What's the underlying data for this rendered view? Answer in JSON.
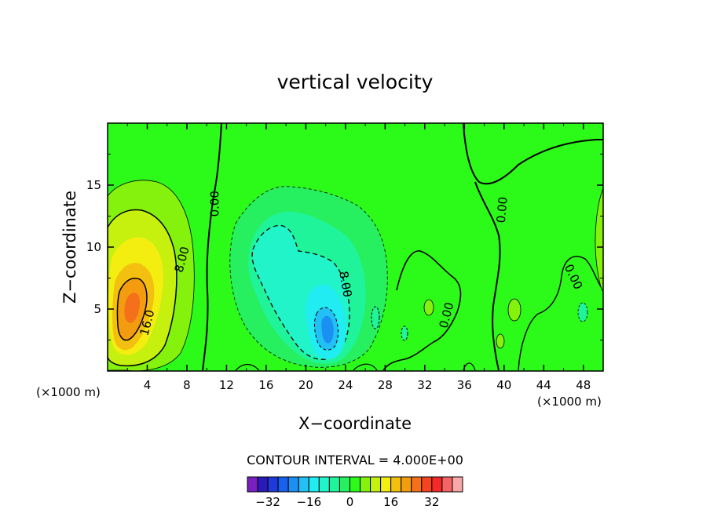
{
  "chart_data": {
    "type": "contour",
    "title": "vertical velocity",
    "xlabel": "X−coordinate",
    "ylabel": "Z−coordinate",
    "x_unit": "(×1000 m)",
    "y_unit": "(×1000 m)",
    "xlim": [
      0,
      50
    ],
    "ylim": [
      0,
      20
    ],
    "xticks": [
      4,
      8,
      12,
      16,
      20,
      24,
      28,
      32,
      36,
      40,
      44,
      48
    ],
    "xtick_labels": [
      "4",
      "8",
      "12",
      "16",
      "20",
      "24",
      "28",
      "32",
      "36",
      "40",
      "44",
      "48"
    ],
    "yticks": [
      5,
      10,
      15
    ],
    "ytick_labels": [
      "5",
      "10",
      "15"
    ],
    "contour_interval": "CONTOUR INTERVAL = 4.000E+00",
    "contour_labels": [
      {
        "text": "0.00",
        "x": 10.8,
        "z": 13.5,
        "rotate": -90
      },
      {
        "text": "8.00",
        "x": 7.5,
        "z": 9.0,
        "rotate": -75
      },
      {
        "text": "16.0",
        "x": 4.0,
        "z": 3.9,
        "rotate": -75
      },
      {
        "text": "8.00",
        "x": 24.0,
        "z": 7.0,
        "rotate": 80
      },
      {
        "text": "0.00",
        "x": 34.2,
        "z": 4.5,
        "rotate": -75
      },
      {
        "text": "0.00",
        "x": 39.8,
        "z": 13.0,
        "rotate": -85
      },
      {
        "text": "0.00",
        "x": 47.0,
        "z": 7.6,
        "rotate": 65
      }
    ],
    "features": [
      {
        "kind": "updraft",
        "center_x": 2.5,
        "center_z": 5.5,
        "peak": 28
      },
      {
        "kind": "downdraft",
        "center_x": 22.0,
        "center_z": 4.0,
        "peak": -20
      }
    ],
    "colorbar": {
      "levels": [
        -36,
        -32,
        -28,
        -24,
        -20,
        -16,
        -12,
        -8,
        -4,
        0,
        4,
        8,
        12,
        16,
        20,
        24,
        28,
        32,
        36
      ],
      "colors": [
        "#7a1fc0",
        "#2a1ab8",
        "#1f3ad8",
        "#1860ee",
        "#1a90f2",
        "#22c0f4",
        "#20ecf2",
        "#20f4c8",
        "#20f49a",
        "#26f060",
        "#2cfa18",
        "#84f20c",
        "#c6f00e",
        "#f4ee10",
        "#f4c010",
        "#f49c10",
        "#f4701a",
        "#f44420",
        "#f42a2a",
        "#f46464",
        "#f8a8a8"
      ],
      "tick_values": [
        -32,
        -16,
        0,
        16,
        32
      ],
      "tick_labels": [
        "−32",
        "−16",
        "0",
        "16",
        "32"
      ]
    }
  }
}
